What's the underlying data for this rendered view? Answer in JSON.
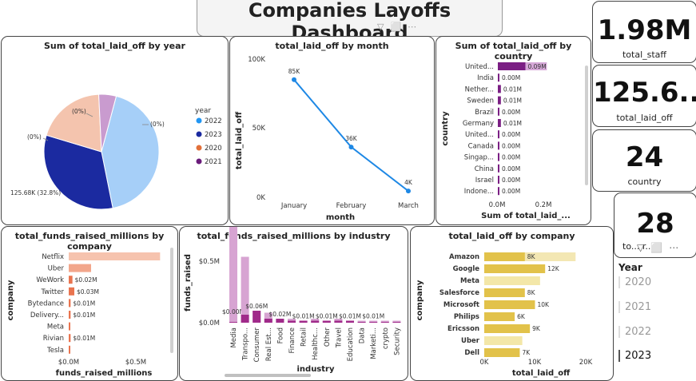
{
  "header": {
    "title": "Companies Layoffs Dashboard",
    "icons": [
      "filter-icon",
      "expand-icon",
      "more-icon"
    ]
  },
  "kpis": [
    {
      "value": "1.98M",
      "label": "total_staff"
    },
    {
      "value": "125.6...",
      "label": "total_laid_off"
    },
    {
      "value": "24",
      "label": "country"
    },
    {
      "value": "28",
      "label": "to... r..."
    }
  ],
  "slicer": {
    "title": "Year",
    "items": [
      "2020",
      "2021",
      "2022",
      "2023"
    ],
    "selected": "2023"
  },
  "pie": {
    "title": "Sum of total_laid_off by year",
    "legend_title": "year",
    "legend": [
      "2022",
      "2023",
      "2020",
      "2021"
    ],
    "labels": [
      "(0%)",
      "(0%)",
      "(0%)",
      "125.68K (32.8%)"
    ]
  },
  "line": {
    "title": "total_laid_off by month",
    "xlabel": "month",
    "ylabel": "total_laid_off",
    "yticks": [
      "100K",
      "50K",
      "0K"
    ]
  },
  "country": {
    "title": "Sum of total_laid_off by country",
    "xlabel": "Sum of total_laid_...",
    "ylabel": "country",
    "xticks": [
      "0.0M",
      "0.2M"
    ]
  },
  "funds_company": {
    "title": "total_funds_raised_millions by company",
    "xlabel": "funds_raised_millions",
    "ylabel": "company",
    "xticks": [
      "$0.0M",
      "$0.5M"
    ]
  },
  "funds_industry": {
    "title": "total_funds_raised_millions by industry",
    "xlabel": "industry",
    "ylabel": "funds_raised",
    "yticks": [
      "$0.5M",
      "$0.0M"
    ]
  },
  "laid_company": {
    "title": "total_laid_off by company",
    "xlabel": "total_laid_off",
    "ylabel": "company",
    "xticks": [
      "0K",
      "10K",
      "20K"
    ]
  },
  "chart_data": [
    {
      "type": "pie",
      "title": "Sum of total_laid_off by year",
      "legend_title": "year",
      "categories": [
        "2022",
        "2023",
        "2020",
        "2021"
      ],
      "values": [
        42.7,
        32.8,
        19.6,
        4.9
      ],
      "colors": [
        "#a6cff8",
        "#1b2aa0",
        "#f4c4ae",
        "#c99bcf"
      ],
      "labels": {
        "2023": "125.68K (32.8%)",
        "2020": "(0%)",
        "2021": "(0%)",
        "2022": "(0%)"
      }
    },
    {
      "type": "line",
      "title": "total_laid_off by month",
      "xlabel": "month",
      "ylabel": "total_laid_off",
      "categories": [
        "January",
        "February",
        "March"
      ],
      "values": [
        85000,
        36000,
        4000
      ],
      "data_labels": [
        "85K",
        "36K",
        "4K"
      ],
      "ylim": [
        0,
        100000
      ],
      "color": "#1e88e5"
    },
    {
      "type": "bar",
      "title": "Sum of total_laid_off by country",
      "xlabel": "Sum of total_laid_...",
      "ylabel": "country",
      "categories": [
        "United...",
        "India",
        "Nether...",
        "Sweden",
        "Brazil",
        "Germany",
        "United...",
        "Canada",
        "Singap...",
        "China",
        "Israel",
        "Indone..."
      ],
      "values": [
        0.09,
        0.004,
        0.01,
        0.01,
        0.004,
        0.01,
        0.004,
        0.004,
        0.004,
        0.004,
        0.004,
        0.004
      ],
      "background": [
        0.16,
        0.0,
        0.0,
        0.0,
        0.0,
        0.0,
        0.0,
        0.0,
        0.0,
        0.0,
        0.0,
        0.0
      ],
      "data_labels": [
        "0.09M",
        "0.00M",
        "0.01M",
        "0.01M",
        "0.00M",
        "0.01M",
        "0.00M",
        "0.00M",
        "0.00M",
        "0.00M",
        "0.00M",
        "0.00M"
      ],
      "xlim": [
        0,
        0.3
      ],
      "color": "#7b1f84",
      "bg_color": "#d6a8d8"
    },
    {
      "type": "bar",
      "title": "total_funds_raised_millions by company",
      "xlabel": "funds_raised_millions",
      "ylabel": "company",
      "categories": [
        "Netflix",
        "Uber",
        "WeWork",
        "Twitter",
        "Bytedance",
        "Delivery...",
        "Meta",
        "Rivian",
        "Tesla"
      ],
      "values": [
        0.49,
        0.12,
        0.02,
        0.03,
        0.01,
        0.01,
        0.004,
        0.01,
        0.004
      ],
      "data_labels": [
        "",
        "",
        "$0.02M",
        "$0.03M",
        "$0.01M",
        "$0.01M",
        "",
        "$0.01M",
        ""
      ],
      "xlim": [
        0,
        0.6
      ],
      "colors": [
        "#f6c3ae",
        "#f2a68b",
        "#e9744f",
        "#e9744f",
        "#e9744f",
        "#e9744f",
        "#e9744f",
        "#e9744f",
        "#e9744f"
      ]
    },
    {
      "type": "bar",
      "title": "total_funds_raised_millions by industry",
      "xlabel": "industry",
      "ylabel": "funds_raised",
      "categories": [
        "Media",
        "Transpo...",
        "Consumer",
        "Real Est...",
        "Food",
        "Finance",
        "Retail",
        "Healthc...",
        "Other",
        "Travel",
        "Education",
        "Data",
        "Marketi...",
        "crypto",
        "Security"
      ],
      "values": [
        0.49,
        0.33,
        0.06,
        0.05,
        0.02,
        0.02,
        0.01,
        0.02,
        0.01,
        0.02,
        0.01,
        0.01,
        0.01,
        0.01,
        0.01
      ],
      "dark_values": [
        0.004,
        0.04,
        0.06,
        0.02,
        0.02,
        0.01,
        0.01,
        0.01,
        0.01,
        0.01,
        0.01,
        0.004,
        0.004,
        0.004,
        0.004
      ],
      "data_labels": [
        "$0.00M",
        "",
        "$0.06M",
        "",
        "$0.02M",
        "",
        "$0.01M",
        "",
        "$0.01M",
        "",
        "$0.01M",
        "",
        "$0.01M",
        "",
        ""
      ],
      "ylim": [
        0,
        0.6
      ],
      "color": "#d7a4d2",
      "dark_color": "#a02a8a"
    },
    {
      "type": "bar",
      "title": "total_laid_off by company",
      "xlabel": "total_laid_off",
      "ylabel": "company",
      "categories": [
        "Amazon",
        "Google",
        "Meta",
        "Salesforce",
        "Microsoft",
        "Philips",
        "Ericsson",
        "Uber",
        "Dell"
      ],
      "values": [
        8000,
        12000,
        11000,
        8000,
        10000,
        6000,
        9000,
        7500,
        7000
      ],
      "background": [
        18000,
        0,
        0,
        0,
        0,
        0,
        0,
        0,
        0
      ],
      "data_labels": [
        "8K",
        "12K",
        "",
        "8K",
        "10K",
        "6K",
        "9K",
        "",
        "7K"
      ],
      "xlim": [
        0,
        20000
      ],
      "colors": [
        "#e2c24a",
        "#e2c24a",
        "#f3e7a8",
        "#e2c24a",
        "#e2c24a",
        "#e2c24a",
        "#e2c24a",
        "#f3e7a8",
        "#e2c24a"
      ],
      "bg_color": "#f3e7b3"
    }
  ]
}
